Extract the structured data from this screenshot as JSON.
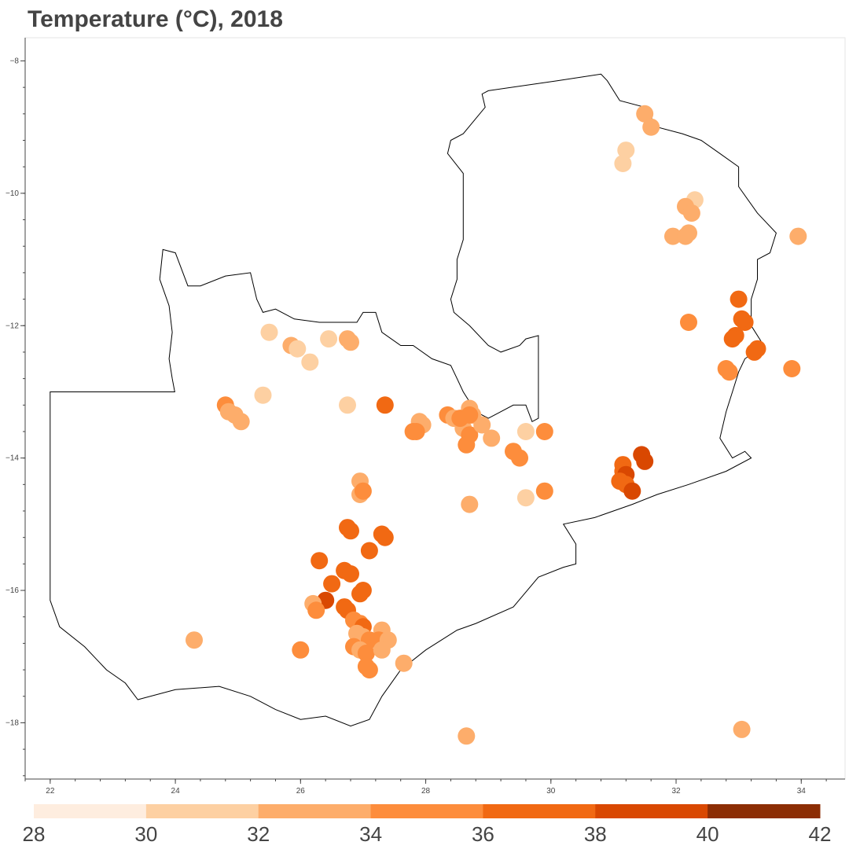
{
  "chart_data": {
    "type": "scatter",
    "title": "Temperature (°C), 2018",
    "xlabel": "",
    "ylabel": "",
    "xlim": [
      21.6,
      34.7
    ],
    "ylim": [
      -18.85,
      -7.65
    ],
    "x_ticks": [
      22,
      24,
      26,
      28,
      30,
      32,
      34
    ],
    "y_ticks": [
      -8,
      -10,
      -12,
      -14,
      -16,
      -18
    ],
    "colorbar": {
      "ticks": [
        28,
        30,
        32,
        34,
        36,
        38,
        40,
        42
      ],
      "colors": [
        "#feeddf",
        "#fdd0a2",
        "#fdad6b",
        "#fd8d3c",
        "#f16913",
        "#d94801",
        "#8c2d04"
      ]
    },
    "border": [
      [
        23.99,
        -13.0
      ],
      [
        22.0,
        -13.0
      ],
      [
        22.0,
        -16.15
      ],
      [
        22.15,
        -16.55
      ],
      [
        22.55,
        -16.85
      ],
      [
        22.9,
        -17.2
      ],
      [
        23.2,
        -17.4
      ],
      [
        23.4,
        -17.65
      ],
      [
        24.0,
        -17.5
      ],
      [
        24.7,
        -17.45
      ],
      [
        25.2,
        -17.6
      ],
      [
        25.6,
        -17.8
      ],
      [
        26.0,
        -17.95
      ],
      [
        26.4,
        -17.9
      ],
      [
        26.8,
        -18.05
      ],
      [
        27.1,
        -17.95
      ],
      [
        27.3,
        -17.6
      ],
      [
        27.6,
        -17.2
      ],
      [
        28.0,
        -16.9
      ],
      [
        28.5,
        -16.6
      ],
      [
        28.8,
        -16.5
      ],
      [
        29.4,
        -16.25
      ],
      [
        29.8,
        -15.8
      ],
      [
        30.2,
        -15.65
      ],
      [
        30.4,
        -15.6
      ],
      [
        30.4,
        -15.3
      ],
      [
        30.2,
        -15.0
      ],
      [
        30.7,
        -14.9
      ],
      [
        31.3,
        -14.7
      ],
      [
        31.7,
        -14.55
      ],
      [
        32.2,
        -14.4
      ],
      [
        32.8,
        -14.2
      ],
      [
        33.2,
        -14.0
      ],
      [
        33.1,
        -13.9
      ],
      [
        32.9,
        -14.0
      ],
      [
        32.7,
        -13.7
      ],
      [
        32.8,
        -13.3
      ],
      [
        32.9,
        -13.0
      ],
      [
        33.0,
        -12.7
      ],
      [
        33.1,
        -12.5
      ],
      [
        33.4,
        -12.3
      ],
      [
        33.2,
        -12.0
      ],
      [
        33.2,
        -11.6
      ],
      [
        33.3,
        -11.3
      ],
      [
        33.3,
        -11.0
      ],
      [
        33.5,
        -10.9
      ],
      [
        33.6,
        -10.6
      ],
      [
        33.3,
        -10.3
      ],
      [
        33.0,
        -9.9
      ],
      [
        33.0,
        -9.6
      ],
      [
        32.7,
        -9.4
      ],
      [
        32.4,
        -9.2
      ],
      [
        32.1,
        -9.1
      ],
      [
        31.7,
        -9.0
      ],
      [
        31.5,
        -8.7
      ],
      [
        31.1,
        -8.6
      ],
      [
        30.9,
        -8.3
      ],
      [
        30.8,
        -8.2
      ],
      [
        30.1,
        -8.3
      ],
      [
        29.0,
        -8.45
      ],
      [
        28.9,
        -8.5
      ],
      [
        28.95,
        -8.7
      ],
      [
        28.6,
        -9.1
      ],
      [
        28.4,
        -9.2
      ],
      [
        28.35,
        -9.4
      ],
      [
        28.6,
        -9.7
      ],
      [
        28.6,
        -10.0
      ],
      [
        28.6,
        -10.4
      ],
      [
        28.6,
        -10.7
      ],
      [
        28.5,
        -11.0
      ],
      [
        28.5,
        -11.3
      ],
      [
        28.4,
        -11.6
      ],
      [
        28.45,
        -11.8
      ],
      [
        28.7,
        -12.0
      ],
      [
        29.0,
        -12.3
      ],
      [
        29.2,
        -12.4
      ],
      [
        29.5,
        -12.3
      ],
      [
        29.6,
        -12.2
      ],
      [
        29.8,
        -12.15
      ],
      [
        29.8,
        -13.4
      ],
      [
        29.7,
        -13.45
      ],
      [
        29.6,
        -13.2
      ],
      [
        29.4,
        -13.2
      ],
      [
        29.0,
        -13.4
      ],
      [
        28.8,
        -13.3
      ],
      [
        28.6,
        -13.0
      ],
      [
        28.5,
        -12.8
      ],
      [
        28.4,
        -12.6
      ],
      [
        28.1,
        -12.5
      ],
      [
        27.8,
        -12.3
      ],
      [
        27.6,
        -12.3
      ],
      [
        27.3,
        -12.1
      ],
      [
        27.2,
        -11.8
      ],
      [
        27.0,
        -11.8
      ],
      [
        26.9,
        -11.95
      ],
      [
        26.6,
        -11.95
      ],
      [
        26.3,
        -11.95
      ],
      [
        25.9,
        -11.9
      ],
      [
        25.6,
        -11.75
      ],
      [
        25.4,
        -11.8
      ],
      [
        25.3,
        -11.6
      ],
      [
        25.2,
        -11.2
      ],
      [
        24.8,
        -11.25
      ],
      [
        24.4,
        -11.4
      ],
      [
        24.2,
        -11.4
      ],
      [
        24.0,
        -10.9
      ],
      [
        23.8,
        -10.85
      ],
      [
        23.75,
        -11.3
      ],
      [
        23.9,
        -11.7
      ],
      [
        23.95,
        -12.1
      ],
      [
        23.9,
        -12.5
      ],
      [
        23.95,
        -12.8
      ],
      [
        23.99,
        -13.0
      ]
    ],
    "points": [
      {
        "x": 31.5,
        "y": -8.8,
        "v": 32.6
      },
      {
        "x": 31.6,
        "y": -9.0,
        "v": 32.8
      },
      {
        "x": 31.2,
        "y": -9.35,
        "v": 30.8
      },
      {
        "x": 31.15,
        "y": -9.55,
        "v": 30.4
      },
      {
        "x": 32.3,
        "y": -10.1,
        "v": 30.8
      },
      {
        "x": 32.15,
        "y": -10.2,
        "v": 32.6
      },
      {
        "x": 32.25,
        "y": -10.3,
        "v": 32.8
      },
      {
        "x": 31.95,
        "y": -10.65,
        "v": 32.6
      },
      {
        "x": 32.15,
        "y": -10.65,
        "v": 32.6
      },
      {
        "x": 32.2,
        "y": -10.6,
        "v": 32.4
      },
      {
        "x": 33.95,
        "y": -10.65,
        "v": 32.6
      },
      {
        "x": 33.0,
        "y": -11.6,
        "v": 36.4
      },
      {
        "x": 32.2,
        "y": -11.95,
        "v": 35.4
      },
      {
        "x": 33.1,
        "y": -11.95,
        "v": 36.2
      },
      {
        "x": 33.05,
        "y": -11.9,
        "v": 36.3
      },
      {
        "x": 32.95,
        "y": -12.15,
        "v": 36.5
      },
      {
        "x": 32.9,
        "y": -12.2,
        "v": 36.4
      },
      {
        "x": 33.25,
        "y": -12.4,
        "v": 36.4
      },
      {
        "x": 33.3,
        "y": -12.35,
        "v": 36.3
      },
      {
        "x": 32.8,
        "y": -12.65,
        "v": 34.5
      },
      {
        "x": 32.85,
        "y": -12.7,
        "v": 34.3
      },
      {
        "x": 33.85,
        "y": -12.65,
        "v": 35.4
      },
      {
        "x": 31.15,
        "y": -14.1,
        "v": 37.8
      },
      {
        "x": 31.15,
        "y": -14.2,
        "v": 37.9
      },
      {
        "x": 31.2,
        "y": -14.25,
        "v": 38.0
      },
      {
        "x": 31.1,
        "y": -14.35,
        "v": 37.7
      },
      {
        "x": 31.2,
        "y": -14.4,
        "v": 37.9
      },
      {
        "x": 31.3,
        "y": -14.5,
        "v": 38.0
      },
      {
        "x": 31.45,
        "y": -13.95,
        "v": 38.0
      },
      {
        "x": 31.5,
        "y": -14.05,
        "v": 38.0
      },
      {
        "x": 25.5,
        "y": -12.1,
        "v": 30.8
      },
      {
        "x": 25.85,
        "y": -12.3,
        "v": 32.0
      },
      {
        "x": 25.95,
        "y": -12.35,
        "v": 31.6
      },
      {
        "x": 26.15,
        "y": -12.55,
        "v": 31.0
      },
      {
        "x": 26.45,
        "y": -12.2,
        "v": 31.0
      },
      {
        "x": 26.75,
        "y": -12.2,
        "v": 32.6
      },
      {
        "x": 26.8,
        "y": -12.25,
        "v": 32.4
      },
      {
        "x": 26.75,
        "y": -13.2,
        "v": 30.8
      },
      {
        "x": 25.4,
        "y": -13.05,
        "v": 31.5
      },
      {
        "x": 24.8,
        "y": -13.2,
        "v": 34.6
      },
      {
        "x": 24.85,
        "y": -13.3,
        "v": 33.0
      },
      {
        "x": 24.95,
        "y": -13.35,
        "v": 32.8
      },
      {
        "x": 25.05,
        "y": -13.45,
        "v": 32.2
      },
      {
        "x": 27.35,
        "y": -13.2,
        "v": 36.4
      },
      {
        "x": 27.9,
        "y": -13.45,
        "v": 32.2
      },
      {
        "x": 27.95,
        "y": -13.5,
        "v": 32.6
      },
      {
        "x": 27.85,
        "y": -13.6,
        "v": 34.6
      },
      {
        "x": 27.8,
        "y": -13.6,
        "v": 34.8
      },
      {
        "x": 28.35,
        "y": -13.35,
        "v": 34.6
      },
      {
        "x": 28.45,
        "y": -13.4,
        "v": 33.8
      },
      {
        "x": 28.7,
        "y": -13.25,
        "v": 32.6
      },
      {
        "x": 28.75,
        "y": -13.35,
        "v": 32.2
      },
      {
        "x": 28.6,
        "y": -13.55,
        "v": 33.0
      },
      {
        "x": 28.7,
        "y": -13.65,
        "v": 34.4
      },
      {
        "x": 28.65,
        "y": -13.8,
        "v": 34.4
      },
      {
        "x": 28.9,
        "y": -13.5,
        "v": 32.6
      },
      {
        "x": 29.05,
        "y": -13.7,
        "v": 33.4
      },
      {
        "x": 28.55,
        "y": -13.4,
        "v": 34.6
      },
      {
        "x": 28.7,
        "y": -13.35,
        "v": 35.0
      },
      {
        "x": 29.4,
        "y": -13.9,
        "v": 35.0
      },
      {
        "x": 29.5,
        "y": -14.0,
        "v": 35.0
      },
      {
        "x": 29.6,
        "y": -13.6,
        "v": 31.0
      },
      {
        "x": 29.9,
        "y": -13.6,
        "v": 35.2
      },
      {
        "x": 28.7,
        "y": -14.7,
        "v": 32.6
      },
      {
        "x": 29.6,
        "y": -14.6,
        "v": 31.0
      },
      {
        "x": 29.9,
        "y": -14.5,
        "v": 35.2
      },
      {
        "x": 26.95,
        "y": -14.35,
        "v": 32.6
      },
      {
        "x": 26.95,
        "y": -14.55,
        "v": 33.0
      },
      {
        "x": 27.0,
        "y": -14.5,
        "v": 34.6
      },
      {
        "x": 26.75,
        "y": -15.05,
        "v": 36.4
      },
      {
        "x": 26.8,
        "y": -15.1,
        "v": 36.3
      },
      {
        "x": 27.35,
        "y": -15.2,
        "v": 36.4
      },
      {
        "x": 27.3,
        "y": -15.15,
        "v": 36.2
      },
      {
        "x": 27.1,
        "y": -15.4,
        "v": 36.4
      },
      {
        "x": 26.3,
        "y": -15.55,
        "v": 36.4
      },
      {
        "x": 26.7,
        "y": -15.7,
        "v": 36.2
      },
      {
        "x": 26.8,
        "y": -15.75,
        "v": 36.4
      },
      {
        "x": 26.5,
        "y": -15.9,
        "v": 36.3
      },
      {
        "x": 26.95,
        "y": -16.05,
        "v": 36.4
      },
      {
        "x": 27.0,
        "y": -16.0,
        "v": 36.2
      },
      {
        "x": 26.4,
        "y": -16.15,
        "v": 38.0
      },
      {
        "x": 26.7,
        "y": -16.25,
        "v": 37.8
      },
      {
        "x": 26.75,
        "y": -16.3,
        "v": 37.9
      },
      {
        "x": 26.2,
        "y": -16.2,
        "v": 33.0
      },
      {
        "x": 26.25,
        "y": -16.3,
        "v": 34.6
      },
      {
        "x": 26.85,
        "y": -16.45,
        "v": 35.6
      },
      {
        "x": 26.95,
        "y": -16.5,
        "v": 35.0
      },
      {
        "x": 27.0,
        "y": -16.55,
        "v": 36.4
      },
      {
        "x": 26.9,
        "y": -16.65,
        "v": 33.6
      },
      {
        "x": 27.0,
        "y": -16.7,
        "v": 33.4
      },
      {
        "x": 27.1,
        "y": -16.75,
        "v": 34.0
      },
      {
        "x": 27.3,
        "y": -16.6,
        "v": 33.0
      },
      {
        "x": 27.25,
        "y": -16.75,
        "v": 34.8
      },
      {
        "x": 27.4,
        "y": -16.75,
        "v": 33.6
      },
      {
        "x": 26.85,
        "y": -16.85,
        "v": 34.4
      },
      {
        "x": 26.95,
        "y": -16.9,
        "v": 33.6
      },
      {
        "x": 27.05,
        "y": -16.95,
        "v": 34.2
      },
      {
        "x": 27.3,
        "y": -16.9,
        "v": 33.2
      },
      {
        "x": 26.0,
        "y": -16.9,
        "v": 35.6
      },
      {
        "x": 27.05,
        "y": -17.15,
        "v": 34.6
      },
      {
        "x": 27.1,
        "y": -17.2,
        "v": 34.4
      },
      {
        "x": 27.65,
        "y": -17.1,
        "v": 33.2
      },
      {
        "x": 24.3,
        "y": -16.75,
        "v": 32.6
      },
      {
        "x": 28.65,
        "y": -18.2,
        "v": 32.6
      },
      {
        "x": 33.05,
        "y": -18.1,
        "v": 32.6
      }
    ]
  }
}
